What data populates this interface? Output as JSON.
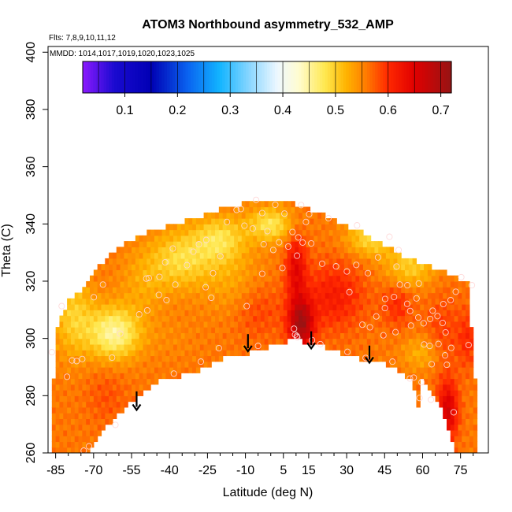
{
  "chart_data": {
    "type": "heatmap",
    "title": "ATOM3 Northbound asymmetry_532_AMP",
    "flights_note": "Flts: 7,8,9,10,11,12",
    "dates_note": "MMDD: 1014,1017,1019,1020,1023,1025",
    "xlabel": "Latitude (deg N)",
    "ylabel": "Theta (C)",
    "xlim": [
      -88,
      86
    ],
    "ylim": [
      260,
      402
    ],
    "x_ticks": [
      -85,
      -70,
      -55,
      -40,
      -25,
      -10,
      5,
      15,
      30,
      45,
      60,
      75
    ],
    "x_minor_ticks": [
      -80,
      -75,
      -65,
      -60,
      -50,
      -45,
      -35,
      -30,
      -20,
      -15,
      -5,
      0,
      10,
      20,
      25,
      35,
      40,
      50,
      55,
      65,
      70,
      80
    ],
    "y_ticks": [
      260,
      280,
      300,
      320,
      340,
      360,
      380,
      400
    ],
    "colorbar": {
      "min": 0.02,
      "max": 0.72,
      "ticks": [
        0.1,
        0.2,
        0.3,
        0.4,
        0.5,
        0.6,
        0.7
      ],
      "tick_labels": [
        "0.1",
        "0.2",
        "0.3",
        "0.4",
        "0.5",
        "0.6",
        "0.7"
      ],
      "stops": [
        {
          "v": 0.02,
          "c": "#8c1aff"
        },
        {
          "v": 0.08,
          "c": "#1a0ad0"
        },
        {
          "v": 0.15,
          "c": "#0000b4"
        },
        {
          "v": 0.22,
          "c": "#0a64f0"
        },
        {
          "v": 0.28,
          "c": "#12b4ff"
        },
        {
          "v": 0.34,
          "c": "#90d8ff"
        },
        {
          "v": 0.39,
          "c": "#eef8ff"
        },
        {
          "v": 0.43,
          "c": "#fffcd0"
        },
        {
          "v": 0.48,
          "c": "#ffe850"
        },
        {
          "v": 0.52,
          "c": "#ffb400"
        },
        {
          "v": 0.56,
          "c": "#ff7800"
        },
        {
          "v": 0.6,
          "c": "#ff2800"
        },
        {
          "v": 0.65,
          "c": "#e00000"
        },
        {
          "v": 0.72,
          "c": "#961414"
        }
      ]
    },
    "lower_boundary": [
      [
        -74,
        259
      ],
      [
        -67,
        267
      ],
      [
        -60,
        274
      ],
      [
        -53,
        279
      ],
      [
        -47,
        283
      ],
      [
        -42,
        287
      ],
      [
        -35,
        287
      ],
      [
        -28,
        289
      ],
      [
        -22,
        292
      ],
      [
        -15,
        294
      ],
      [
        -8,
        295
      ],
      [
        -1,
        297
      ],
      [
        4,
        298
      ],
      [
        9,
        300
      ],
      [
        15,
        298
      ],
      [
        21,
        297
      ],
      [
        28,
        295
      ],
      [
        35,
        293
      ],
      [
        42,
        292
      ],
      [
        48,
        290
      ],
      [
        53,
        287
      ],
      [
        56,
        286
      ],
      [
        58,
        275
      ],
      [
        60,
        287
      ],
      [
        62,
        283
      ],
      [
        65,
        279
      ],
      [
        68,
        274
      ],
      [
        70,
        269
      ],
      [
        72,
        264
      ],
      [
        74,
        259
      ]
    ],
    "upper_boundary": [
      [
        -87,
        270
      ],
      [
        -87,
        299
      ],
      [
        -84,
        305
      ],
      [
        -80,
        312
      ],
      [
        -74,
        317
      ],
      [
        -69,
        323
      ],
      [
        -64,
        328
      ],
      [
        -58,
        332
      ],
      [
        -52,
        335
      ],
      [
        -45,
        337
      ],
      [
        -38,
        339
      ],
      [
        -30,
        341
      ],
      [
        -24,
        343
      ],
      [
        -18,
        345
      ],
      [
        -12,
        346
      ],
      [
        -6,
        347
      ],
      [
        0,
        348
      ],
      [
        4,
        347
      ],
      [
        8,
        347
      ],
      [
        12,
        345
      ],
      [
        18,
        343
      ],
      [
        24,
        341
      ],
      [
        30,
        338
      ],
      [
        36,
        336
      ],
      [
        42,
        333
      ],
      [
        48,
        330
      ],
      [
        54,
        327
      ],
      [
        60,
        325
      ],
      [
        66,
        323
      ],
      [
        72,
        321
      ],
      [
        78,
        318
      ],
      [
        80,
        310
      ],
      [
        81,
        290
      ],
      [
        80,
        280
      ]
    ],
    "value_field": {
      "base": 0.56,
      "blobs": [
        [
          -62,
          302,
          0.45,
          10,
          9
        ],
        [
          -78,
          308,
          0.5,
          8,
          14
        ],
        [
          -35,
          328,
          0.49,
          12,
          10
        ],
        [
          -20,
          335,
          0.49,
          10,
          8
        ],
        [
          0,
          340,
          0.48,
          9,
          6
        ],
        [
          -50,
          320,
          0.53,
          10,
          12
        ],
        [
          -15,
          320,
          0.53,
          12,
          12
        ],
        [
          40,
          335,
          0.49,
          10,
          6
        ],
        [
          55,
          325,
          0.5,
          10,
          7
        ],
        [
          -5,
          310,
          0.59,
          10,
          10
        ],
        [
          25,
          315,
          0.615,
          12,
          12
        ],
        [
          12,
          305,
          0.7,
          5,
          9
        ],
        [
          10,
          325,
          0.64,
          4,
          12
        ],
        [
          50,
          312,
          0.6,
          6,
          8
        ],
        [
          68,
          302,
          0.59,
          7,
          14
        ],
        [
          -65,
          280,
          0.58,
          8,
          10
        ],
        [
          70,
          275,
          0.66,
          4,
          10
        ],
        [
          -40,
          300,
          0.55,
          12,
          8
        ],
        [
          60,
          295,
          0.52,
          8,
          6
        ],
        [
          78,
          300,
          0.6,
          4,
          10
        ]
      ]
    },
    "points": [
      [
        -86.5,
        295.2
      ],
      [
        -82.6,
        311.3
      ],
      [
        -80.5,
        286.6
      ],
      [
        -78.5,
        292.3
      ],
      [
        -76.7,
        292.1
      ],
      [
        -74.5,
        292.8
      ],
      [
        -69.9,
        314.4
      ],
      [
        -66.3,
        318.8
      ],
      [
        -62.7,
        293.3
      ],
      [
        -59.5,
        301.7
      ],
      [
        -71.8,
        262.3
      ],
      [
        -73.9,
        260.8
      ],
      [
        -49.2,
        320.9
      ],
      [
        -48.2,
        321.1
      ],
      [
        -52.0,
        308.4
      ],
      [
        -48.8,
        309.8
      ],
      [
        -44.2,
        315.2
      ],
      [
        -41.2,
        313.4
      ],
      [
        -37.7,
        318.8
      ],
      [
        -41.7,
        326.6
      ],
      [
        -38.7,
        331.4
      ],
      [
        -33.1,
        325.6
      ],
      [
        -30.6,
        330.3
      ],
      [
        -28.4,
        332.9
      ],
      [
        -25.5,
        334.4
      ],
      [
        -22.8,
        322.8
      ],
      [
        -19.9,
        328.7
      ],
      [
        -17.3,
        340.7
      ],
      [
        -25.7,
        317.9
      ],
      [
        -23.5,
        314.2
      ],
      [
        -13.5,
        344.9
      ],
      [
        -11.8,
        345.2
      ],
      [
        -10.4,
        339.4
      ],
      [
        -5.8,
        348.4
      ],
      [
        -3.4,
        343.8
      ],
      [
        -1.3,
        337.5
      ],
      [
        1.8,
        346.7
      ],
      [
        -7.1,
        338.4
      ],
      [
        -2.8,
        332.9
      ],
      [
        1.0,
        330.9
      ],
      [
        5.4,
        343.6
      ],
      [
        6.9,
        332.1
      ],
      [
        10.4,
        328.9
      ],
      [
        12.6,
        333.5
      ],
      [
        10.9,
        335.3
      ],
      [
        15.2,
        343.4
      ],
      [
        -3.4,
        322.6
      ],
      [
        4.6,
        324.6
      ],
      [
        -9.5,
        311.3
      ],
      [
        -20.5,
        296.6
      ],
      [
        -5.0,
        297.4
      ],
      [
        9.2,
        303.4
      ],
      [
        9.6,
        301.3
      ],
      [
        10.3,
        300.8
      ],
      [
        10.5,
        300.4
      ],
      [
        16.3,
        299.4
      ],
      [
        19.6,
        298.0
      ],
      [
        13.9,
        340.7
      ],
      [
        12.0,
        346.6
      ],
      [
        16.0,
        333.2
      ],
      [
        20.3,
        326.1
      ],
      [
        25.8,
        325.2
      ],
      [
        33.8,
        325.7
      ],
      [
        30.1,
        323.4
      ],
      [
        31.1,
        316.2
      ],
      [
        38.4,
        322.8
      ],
      [
        42.4,
        328.3
      ],
      [
        46.9,
        335.5
      ],
      [
        50.5,
        330.9
      ],
      [
        49.7,
        325.1
      ],
      [
        54.0,
        318.6
      ],
      [
        57.6,
        314.0
      ],
      [
        51.0,
        318.8
      ],
      [
        48.7,
        314.5
      ],
      [
        45.1,
        310.6
      ],
      [
        41.7,
        307.7
      ],
      [
        36.2,
        304.8
      ],
      [
        39.2,
        303.9
      ],
      [
        44.5,
        301.1
      ],
      [
        49.3,
        302.2
      ],
      [
        53.9,
        312.1
      ],
      [
        55.1,
        309.6
      ],
      [
        58.3,
        307.3
      ],
      [
        60.4,
        305.3
      ],
      [
        64.0,
        309.7
      ],
      [
        65.9,
        307.8
      ],
      [
        68.2,
        312.0
      ],
      [
        71.1,
        313.4
      ],
      [
        73.1,
        316.3
      ],
      [
        75.3,
        321.4
      ],
      [
        79.5,
        318.6
      ],
      [
        67.9,
        305.4
      ],
      [
        69.1,
        302.1
      ],
      [
        62.8,
        297.4
      ],
      [
        60.6,
        297.9
      ],
      [
        66.3,
        298.1
      ],
      [
        71.3,
        296.7
      ],
      [
        68.9,
        294.1
      ],
      [
        63.6,
        291.0
      ],
      [
        56.5,
        286.3
      ],
      [
        55.0,
        286.0
      ],
      [
        48.1,
        291.9
      ],
      [
        58.8,
        279.2
      ],
      [
        63.3,
        278.6
      ],
      [
        59.6,
        284.7
      ],
      [
        69.6,
        290.8
      ],
      [
        72.3,
        274.2
      ],
      [
        30.3,
        295.3
      ],
      [
        37.5,
        293.2
      ],
      [
        -38.3,
        287.7
      ],
      [
        -27.6,
        291.9
      ],
      [
        -61.4,
        269.8
      ],
      [
        55.4,
        304.5
      ],
      [
        63.0,
        306.8
      ],
      [
        58.5,
        319.2
      ],
      [
        45.2,
        313.8
      ],
      [
        22.8,
        342.0
      ],
      [
        8.6,
        337.2
      ],
      [
        3.3,
        333.6
      ],
      [
        78.2,
        297.7
      ],
      [
        -44.0,
        321.5
      ],
      [
        34.1,
        339.5
      ]
    ],
    "arrows": [
      {
        "lat": -53,
        "theta_top": 281.5,
        "theta_tip": 275
      },
      {
        "lat": -9,
        "theta_top": 301.5,
        "theta_tip": 295.5
      },
      {
        "lat": 16,
        "theta_top": 302.5,
        "theta_tip": 296.5
      },
      {
        "lat": 39,
        "theta_top": 297.5,
        "theta_tip": 291.5
      }
    ]
  }
}
